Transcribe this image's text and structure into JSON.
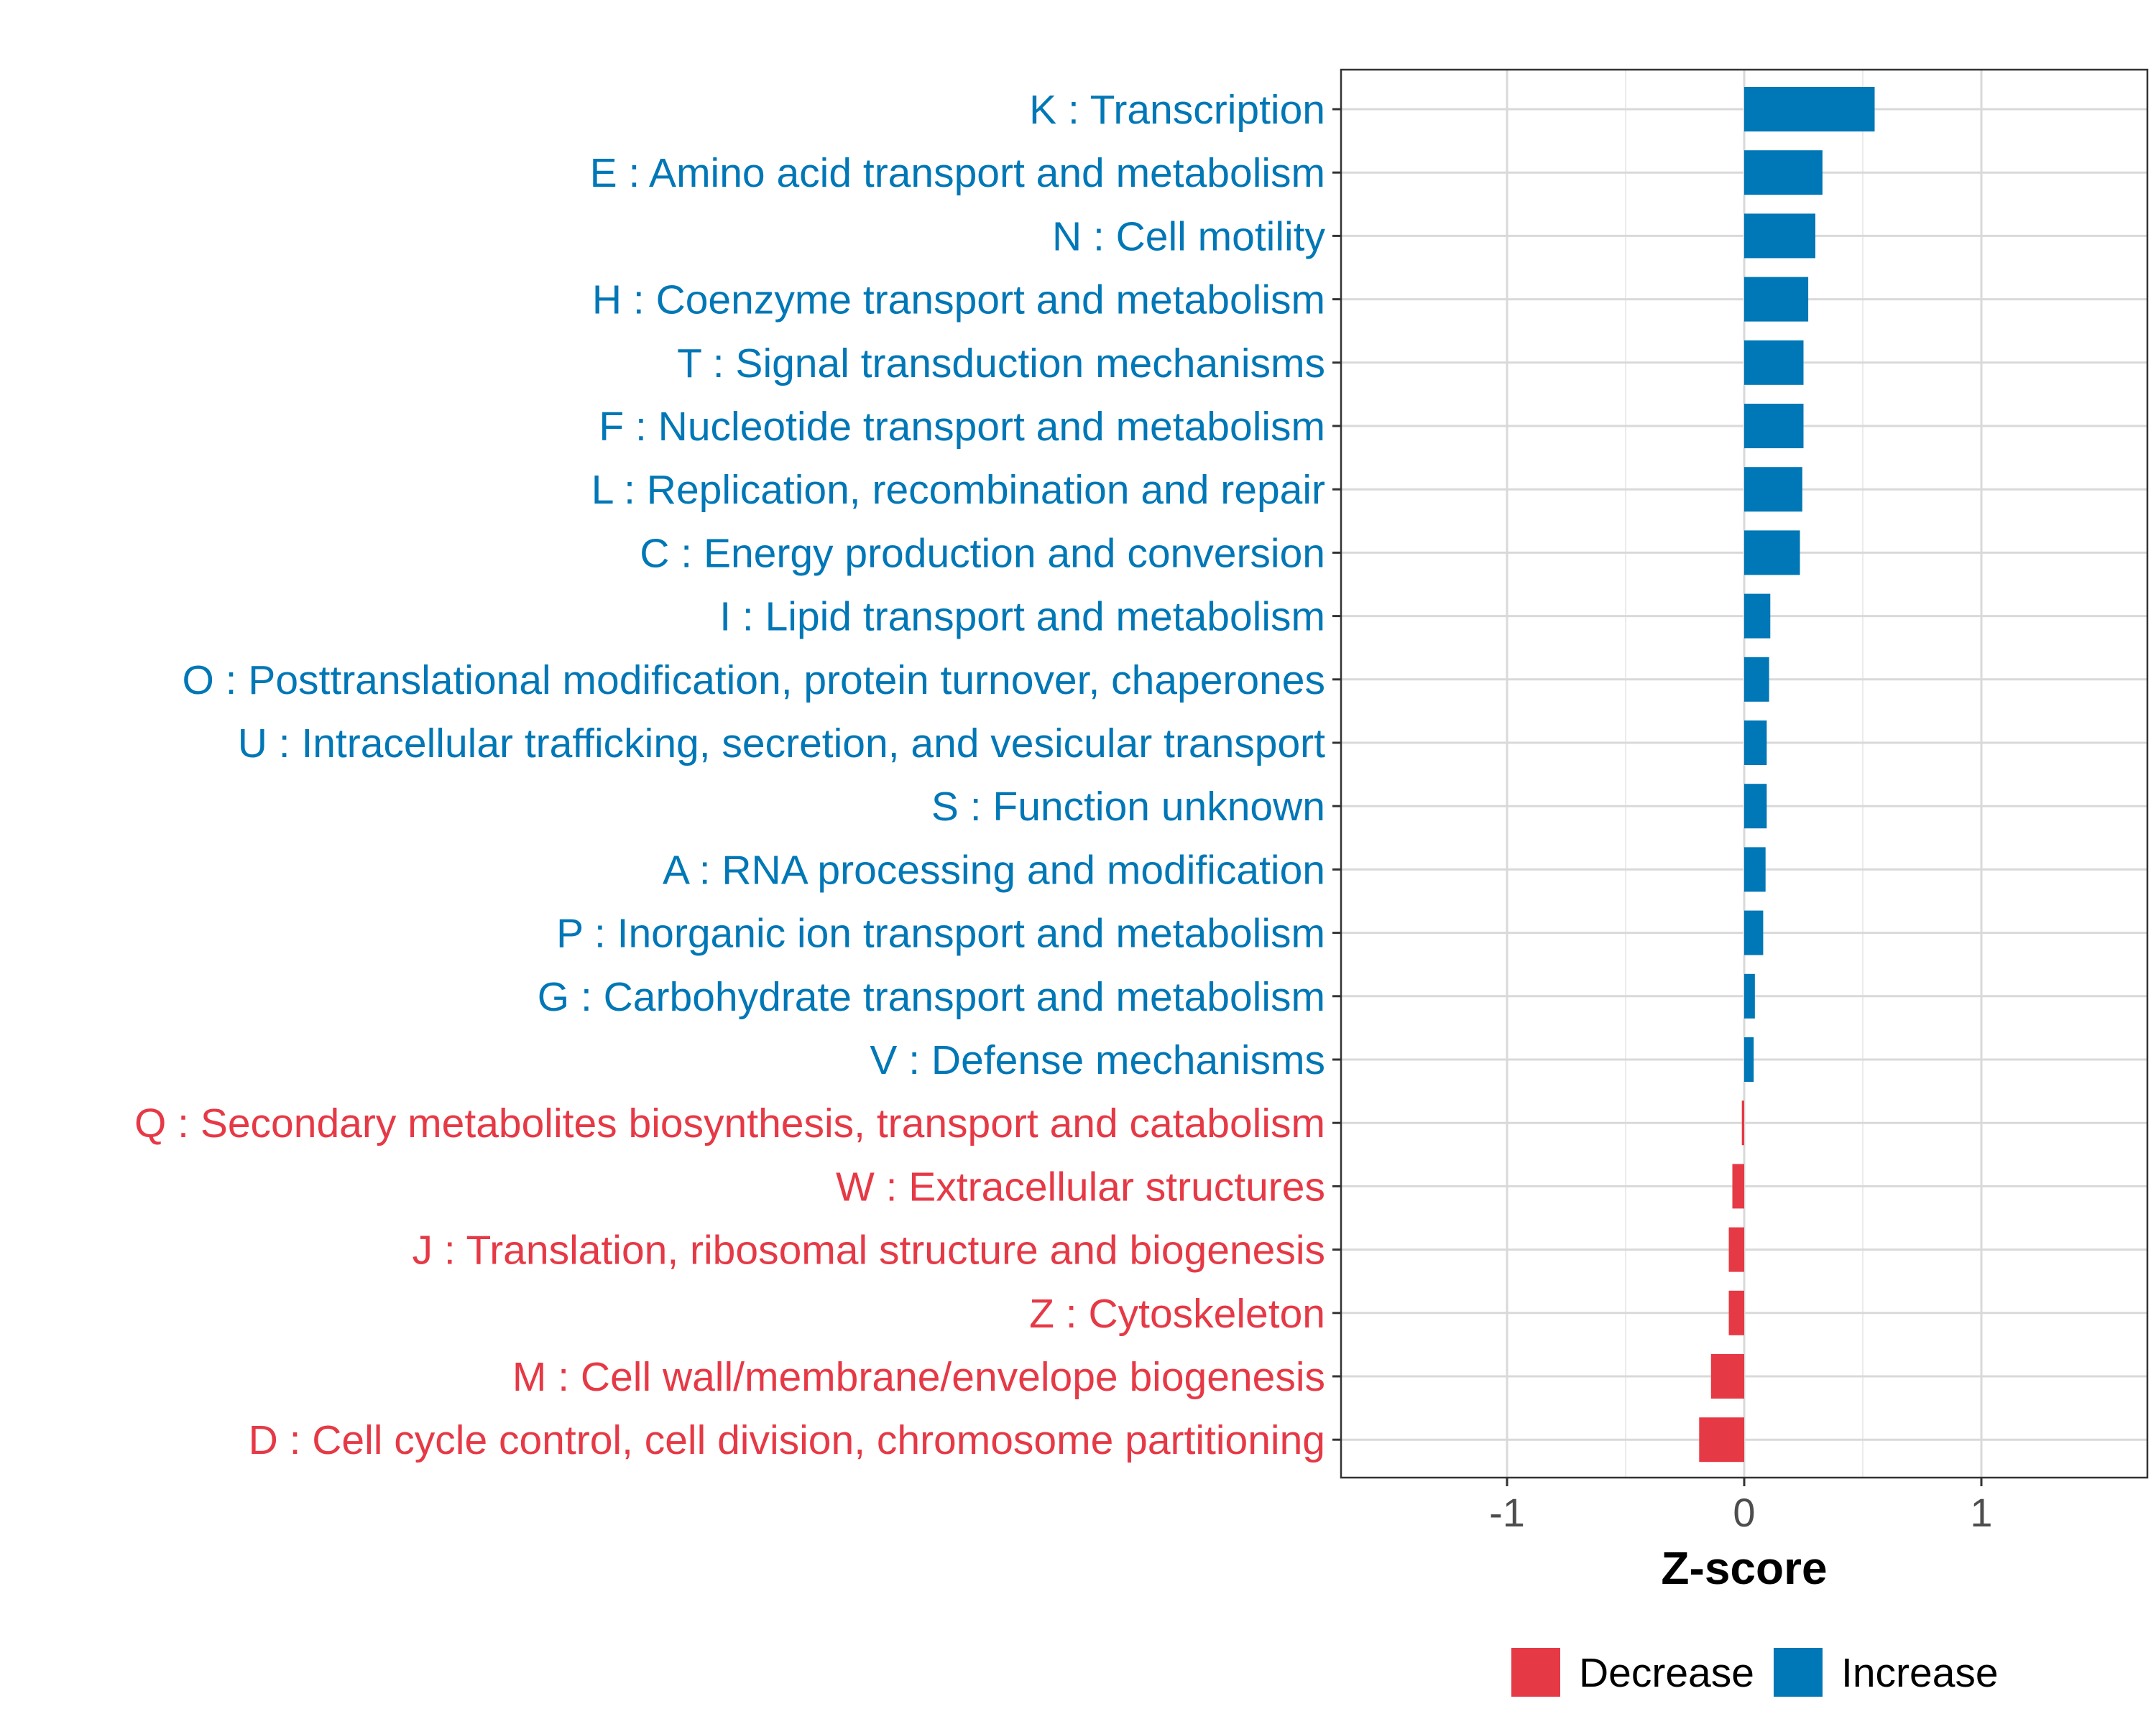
{
  "chart_data": {
    "type": "bar",
    "orientation": "horizontal",
    "title": "",
    "xlabel": "Z-score",
    "ylabel": "",
    "xlim": [
      -1.7,
      1.7
    ],
    "xticks": [
      -1,
      0,
      1
    ],
    "xtick_labels": [
      "-1",
      "0",
      "1"
    ],
    "grid": true,
    "legend_position": "bottom",
    "categories": [
      "K : Transcription",
      "E : Amino acid transport and metabolism",
      "N : Cell motility",
      "H : Coenzyme transport and metabolism",
      "T : Signal transduction mechanisms",
      "F : Nucleotide transport and metabolism",
      "L : Replication, recombination and repair",
      "C : Energy production and conversion",
      "I : Lipid transport and metabolism",
      "O : Posttranslational modification, protein turnover, chaperones",
      "U : Intracellular trafficking, secretion, and vesicular transport",
      "S : Function unknown",
      "A : RNA processing and modification",
      "P : Inorganic ion transport and metabolism",
      "G : Carbohydrate transport and metabolism",
      "V : Defense mechanisms",
      "Q : Secondary metabolites biosynthesis, transport and catabolism",
      "W : Extracellular structures",
      "J : Translation, ribosomal structure and biogenesis",
      "Z : Cytoskeleton",
      "M : Cell wall/membrane/envelope biogenesis",
      "D : Cell cycle control, cell division, chromosome partitioning"
    ],
    "values": [
      0.55,
      0.33,
      0.3,
      0.27,
      0.25,
      0.25,
      0.245,
      0.235,
      0.11,
      0.105,
      0.095,
      0.095,
      0.09,
      0.08,
      0.045,
      0.04,
      -0.01,
      -0.05,
      -0.065,
      -0.065,
      -0.14,
      -0.19
    ],
    "groups": [
      "Increase",
      "Increase",
      "Increase",
      "Increase",
      "Increase",
      "Increase",
      "Increase",
      "Increase",
      "Increase",
      "Increase",
      "Increase",
      "Increase",
      "Increase",
      "Increase",
      "Increase",
      "Increase",
      "Decrease",
      "Decrease",
      "Decrease",
      "Decrease",
      "Decrease",
      "Decrease"
    ],
    "legend": [
      {
        "name": "Decrease",
        "color": "#e63946"
      },
      {
        "name": "Increase",
        "color": "#0077b6"
      }
    ]
  }
}
